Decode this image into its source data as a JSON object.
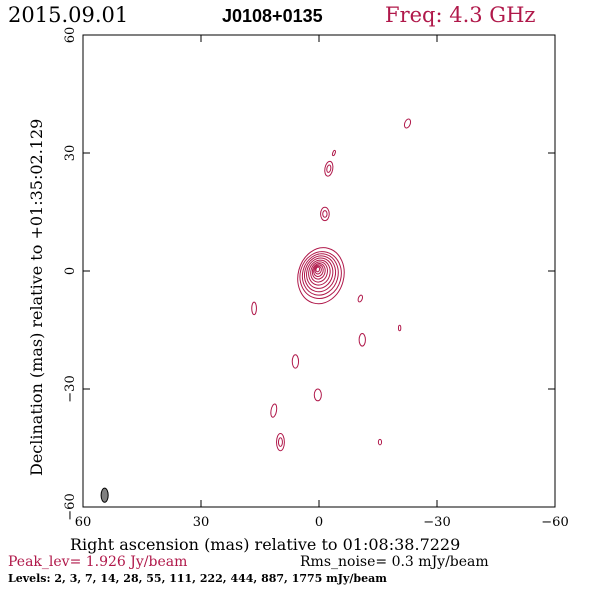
{
  "header": {
    "date": "2015.09.01",
    "source": "J0108+0135",
    "frequency": "Freq: 4.3 GHz"
  },
  "footer": {
    "peak": "Peak_lev=  1.926 Jy/beam",
    "rms": "Rms_noise=  0.3 mJy/beam",
    "levels": "Levels:   2,   3,   7,  14,  28,  55, 111, 222, 444, 887, 1775 mJy/beam"
  },
  "colors": {
    "contour": "#b0184a",
    "title_accent": "#b0184a",
    "axes": "#000000",
    "beam_fill": "#808080"
  },
  "chart_data": {
    "type": "contour",
    "xlabel": "Right ascension (mas) relative to 01:08:38.7229",
    "ylabel": "Declination (mas) relative to +01:35:02.129",
    "xlim": [
      60,
      -60
    ],
    "ylim": [
      -60,
      60
    ],
    "xticks": [
      60,
      30,
      0,
      -30,
      -60
    ],
    "yticks": [
      -60,
      -30,
      0,
      30,
      60
    ],
    "x_tick_labels": [
      "60",
      "30",
      "0",
      "−30",
      "−60"
    ],
    "y_tick_labels": [
      "−60",
      "−30",
      "0",
      "30",
      "60"
    ],
    "contour_levels_mJy": [
      2,
      3,
      7,
      14,
      28,
      55,
      111,
      222,
      444,
      887,
      1775
    ],
    "peak_Jy_per_beam": 1.926,
    "rms_noise_mJy_per_beam": 0.3,
    "core": {
      "x": 0.3,
      "y": 0.4,
      "count": 11,
      "major": [
        0.6,
        1.0,
        1.5,
        2.0,
        2.6,
        3.2,
        3.9,
        4.6,
        5.3,
        6.0,
        7.2
      ],
      "minor": [
        0.45,
        0.8,
        1.2,
        1.6,
        2.1,
        2.7,
        3.3,
        3.9,
        4.5,
        5.2,
        5.8
      ],
      "pa": 15
    },
    "components": [
      {
        "x": -22.5,
        "y": 37.5,
        "a": 1.2,
        "b": 0.7,
        "pa": 20,
        "n": 1
      },
      {
        "x": -3.8,
        "y": 30.0,
        "a": 0.7,
        "b": 0.3,
        "pa": 20,
        "n": 1
      },
      {
        "x": -2.5,
        "y": 26.0,
        "a": 1.9,
        "b": 1.0,
        "pa": 10,
        "n": 2
      },
      {
        "x": -1.5,
        "y": 14.5,
        "a": 1.7,
        "b": 1.1,
        "pa": 0,
        "n": 2
      },
      {
        "x": 16.5,
        "y": -9.5,
        "a": 1.6,
        "b": 0.6,
        "pa": 0,
        "n": 1
      },
      {
        "x": -10.5,
        "y": -7.0,
        "a": 0.9,
        "b": 0.5,
        "pa": 20,
        "n": 1
      },
      {
        "x": -11.0,
        "y": -17.5,
        "a": 1.6,
        "b": 0.8,
        "pa": 0,
        "n": 1
      },
      {
        "x": -20.5,
        "y": -14.5,
        "a": 0.7,
        "b": 0.3,
        "pa": 0,
        "n": 1
      },
      {
        "x": 6.0,
        "y": -23.0,
        "a": 1.7,
        "b": 0.8,
        "pa": 0,
        "n": 1
      },
      {
        "x": 0.3,
        "y": -31.5,
        "a": 1.5,
        "b": 0.9,
        "pa": 0,
        "n": 1
      },
      {
        "x": 11.5,
        "y": -35.5,
        "a": 1.7,
        "b": 0.7,
        "pa": 10,
        "n": 1
      },
      {
        "x": 9.8,
        "y": -43.5,
        "a": 2.2,
        "b": 1.0,
        "pa": 0,
        "n": 2
      },
      {
        "x": -15.5,
        "y": -43.5,
        "a": 0.7,
        "b": 0.4,
        "pa": 0,
        "n": 1
      }
    ],
    "beam": {
      "x": 54.5,
      "y": -57.0,
      "a": 1.8,
      "b": 0.9,
      "pa": 0
    }
  }
}
